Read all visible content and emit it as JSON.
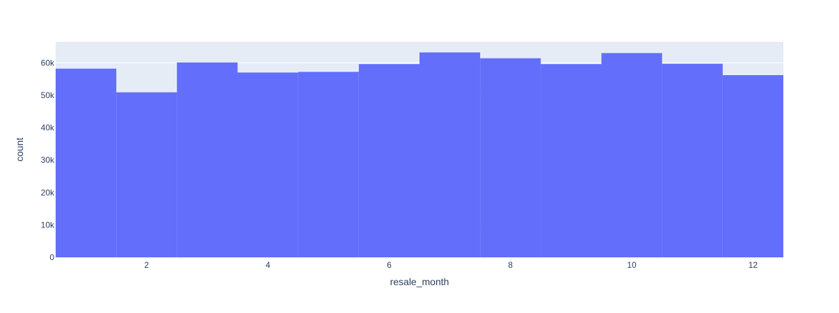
{
  "chart_data": {
    "type": "bar",
    "title": "",
    "xlabel": "resale_month",
    "ylabel": "count",
    "categories": [
      1,
      2,
      3,
      4,
      5,
      6,
      7,
      8,
      9,
      10,
      11,
      12
    ],
    "values": [
      58200,
      50900,
      60100,
      57000,
      57200,
      59600,
      63200,
      61400,
      59600,
      63000,
      59700,
      56200
    ],
    "xlim": [
      0.5,
      12.5
    ],
    "ylim": [
      0,
      66500
    ],
    "x_ticks": [
      2,
      4,
      6,
      8,
      10,
      12
    ],
    "x_tick_labels": [
      "2",
      "4",
      "6",
      "8",
      "10",
      "12"
    ],
    "y_ticks": [
      0,
      10000,
      20000,
      30000,
      40000,
      50000,
      60000
    ],
    "y_tick_labels": [
      "0",
      "10k",
      "20k",
      "30k",
      "40k",
      "50k",
      "60k"
    ],
    "grid": true,
    "legend": "none",
    "colors": {
      "bar": "#636efa",
      "plot_background": "#e5ecf6",
      "grid": "#ffffff",
      "text": "#2a3f5f"
    }
  }
}
